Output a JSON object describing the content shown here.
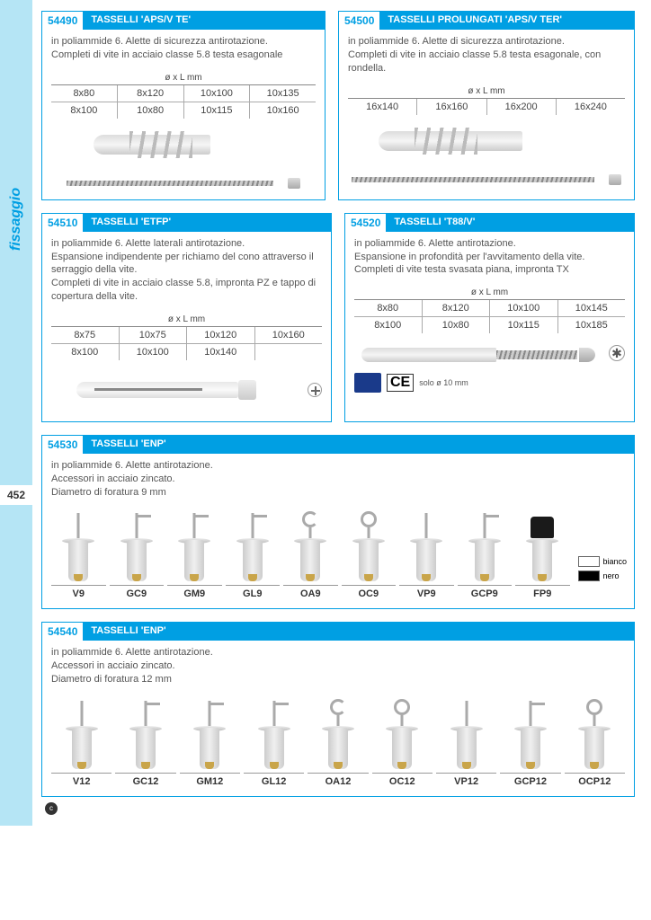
{
  "sidebar": {
    "category": "fissaggio",
    "page_number": "452"
  },
  "colors": {
    "brand": "#009fe3",
    "sidebar_bg": "#b5e5f5",
    "text": "#555555",
    "border": "#888888"
  },
  "boxes": {
    "b54490": {
      "code": "54490",
      "title": "TASSELLI 'APS/V TE'",
      "desc": "in poliammide 6. Alette di sicurezza antirotazione.\nCompleti di vite in acciaio classe 5.8 testa esagonale",
      "table_header": "ø x L mm",
      "rows": [
        [
          "8x80",
          "8x120",
          "10x100",
          "10x135"
        ],
        [
          "8x100",
          "10x80",
          "10x115",
          "10x160"
        ]
      ]
    },
    "b54500": {
      "code": "54500",
      "title": "TASSELLI PROLUNGATI 'APS/V  TER'",
      "desc": "in poliammide 6. Alette di sicurezza antirotazione.\nCompleti di vite in acciaio classe 5.8 testa esagonale, con rondella.",
      "table_header": "ø x L mm",
      "rows": [
        [
          "16x140",
          "16x160",
          "16x200",
          "16x240"
        ]
      ]
    },
    "b54510": {
      "code": "54510",
      "title": "TASSELLI 'ETFP'",
      "desc": "in poliammide 6. Alette laterali antirotazione.\nEspansione indipendente per richiamo del cono attraverso il serraggio della vite.\nCompleti di vite in acciaio classe 5.8, impronta PZ e tappo di copertura della vite.",
      "table_header": "ø x L mm",
      "rows": [
        [
          "8x75",
          "10x75",
          "10x120",
          "10x160"
        ],
        [
          "8x100",
          "10x100",
          "10x140",
          ""
        ]
      ]
    },
    "b54520": {
      "code": "54520",
      "title": "TASSELLI 'T88/V'",
      "desc": "in poliammide 6. Alette antirotazione.\nEspansione in profondità per l'avvitamento della vite.\nCompleti di vite testa svasata piana, impronta TX",
      "table_header": "ø x L mm",
      "rows": [
        [
          "8x80",
          "8x120",
          "10x100",
          "10x145"
        ],
        [
          "8x100",
          "10x80",
          "10x115",
          "10x185"
        ]
      ],
      "ce_note": "solo ø 10 mm"
    },
    "b54530": {
      "code": "54530",
      "title": "TASSELLI 'ENP'",
      "desc": "in poliammide 6. Alette antirotazione.\nAccessori in acciaio zincato.\nDiametro di foratura 9 mm",
      "products": [
        "V9",
        "GC9",
        "GM9",
        "GL9",
        "OA9",
        "OC9",
        "VP9",
        "GCP9",
        "FP9"
      ],
      "product_types": [
        "screw",
        "L",
        "L",
        "L",
        "C",
        "O",
        "screw",
        "L",
        "bumper"
      ],
      "swatches": [
        {
          "label": "bianco",
          "color": "#ffffff"
        },
        {
          "label": "nero",
          "color": "#000000"
        }
      ]
    },
    "b54540": {
      "code": "54540",
      "title": "TASSELLI 'ENP'",
      "desc": "in poliammide 6. Alette antirotazione.\nAccessori in acciaio zincato.\nDiametro di foratura 12 mm",
      "products": [
        "V12",
        "GC12",
        "GM12",
        "GL12",
        "OA12",
        "OC12",
        "VP12",
        "GCP12",
        "OCP12"
      ],
      "product_types": [
        "screw",
        "L",
        "L",
        "L",
        "C",
        "O",
        "screw",
        "L",
        "O"
      ]
    }
  }
}
